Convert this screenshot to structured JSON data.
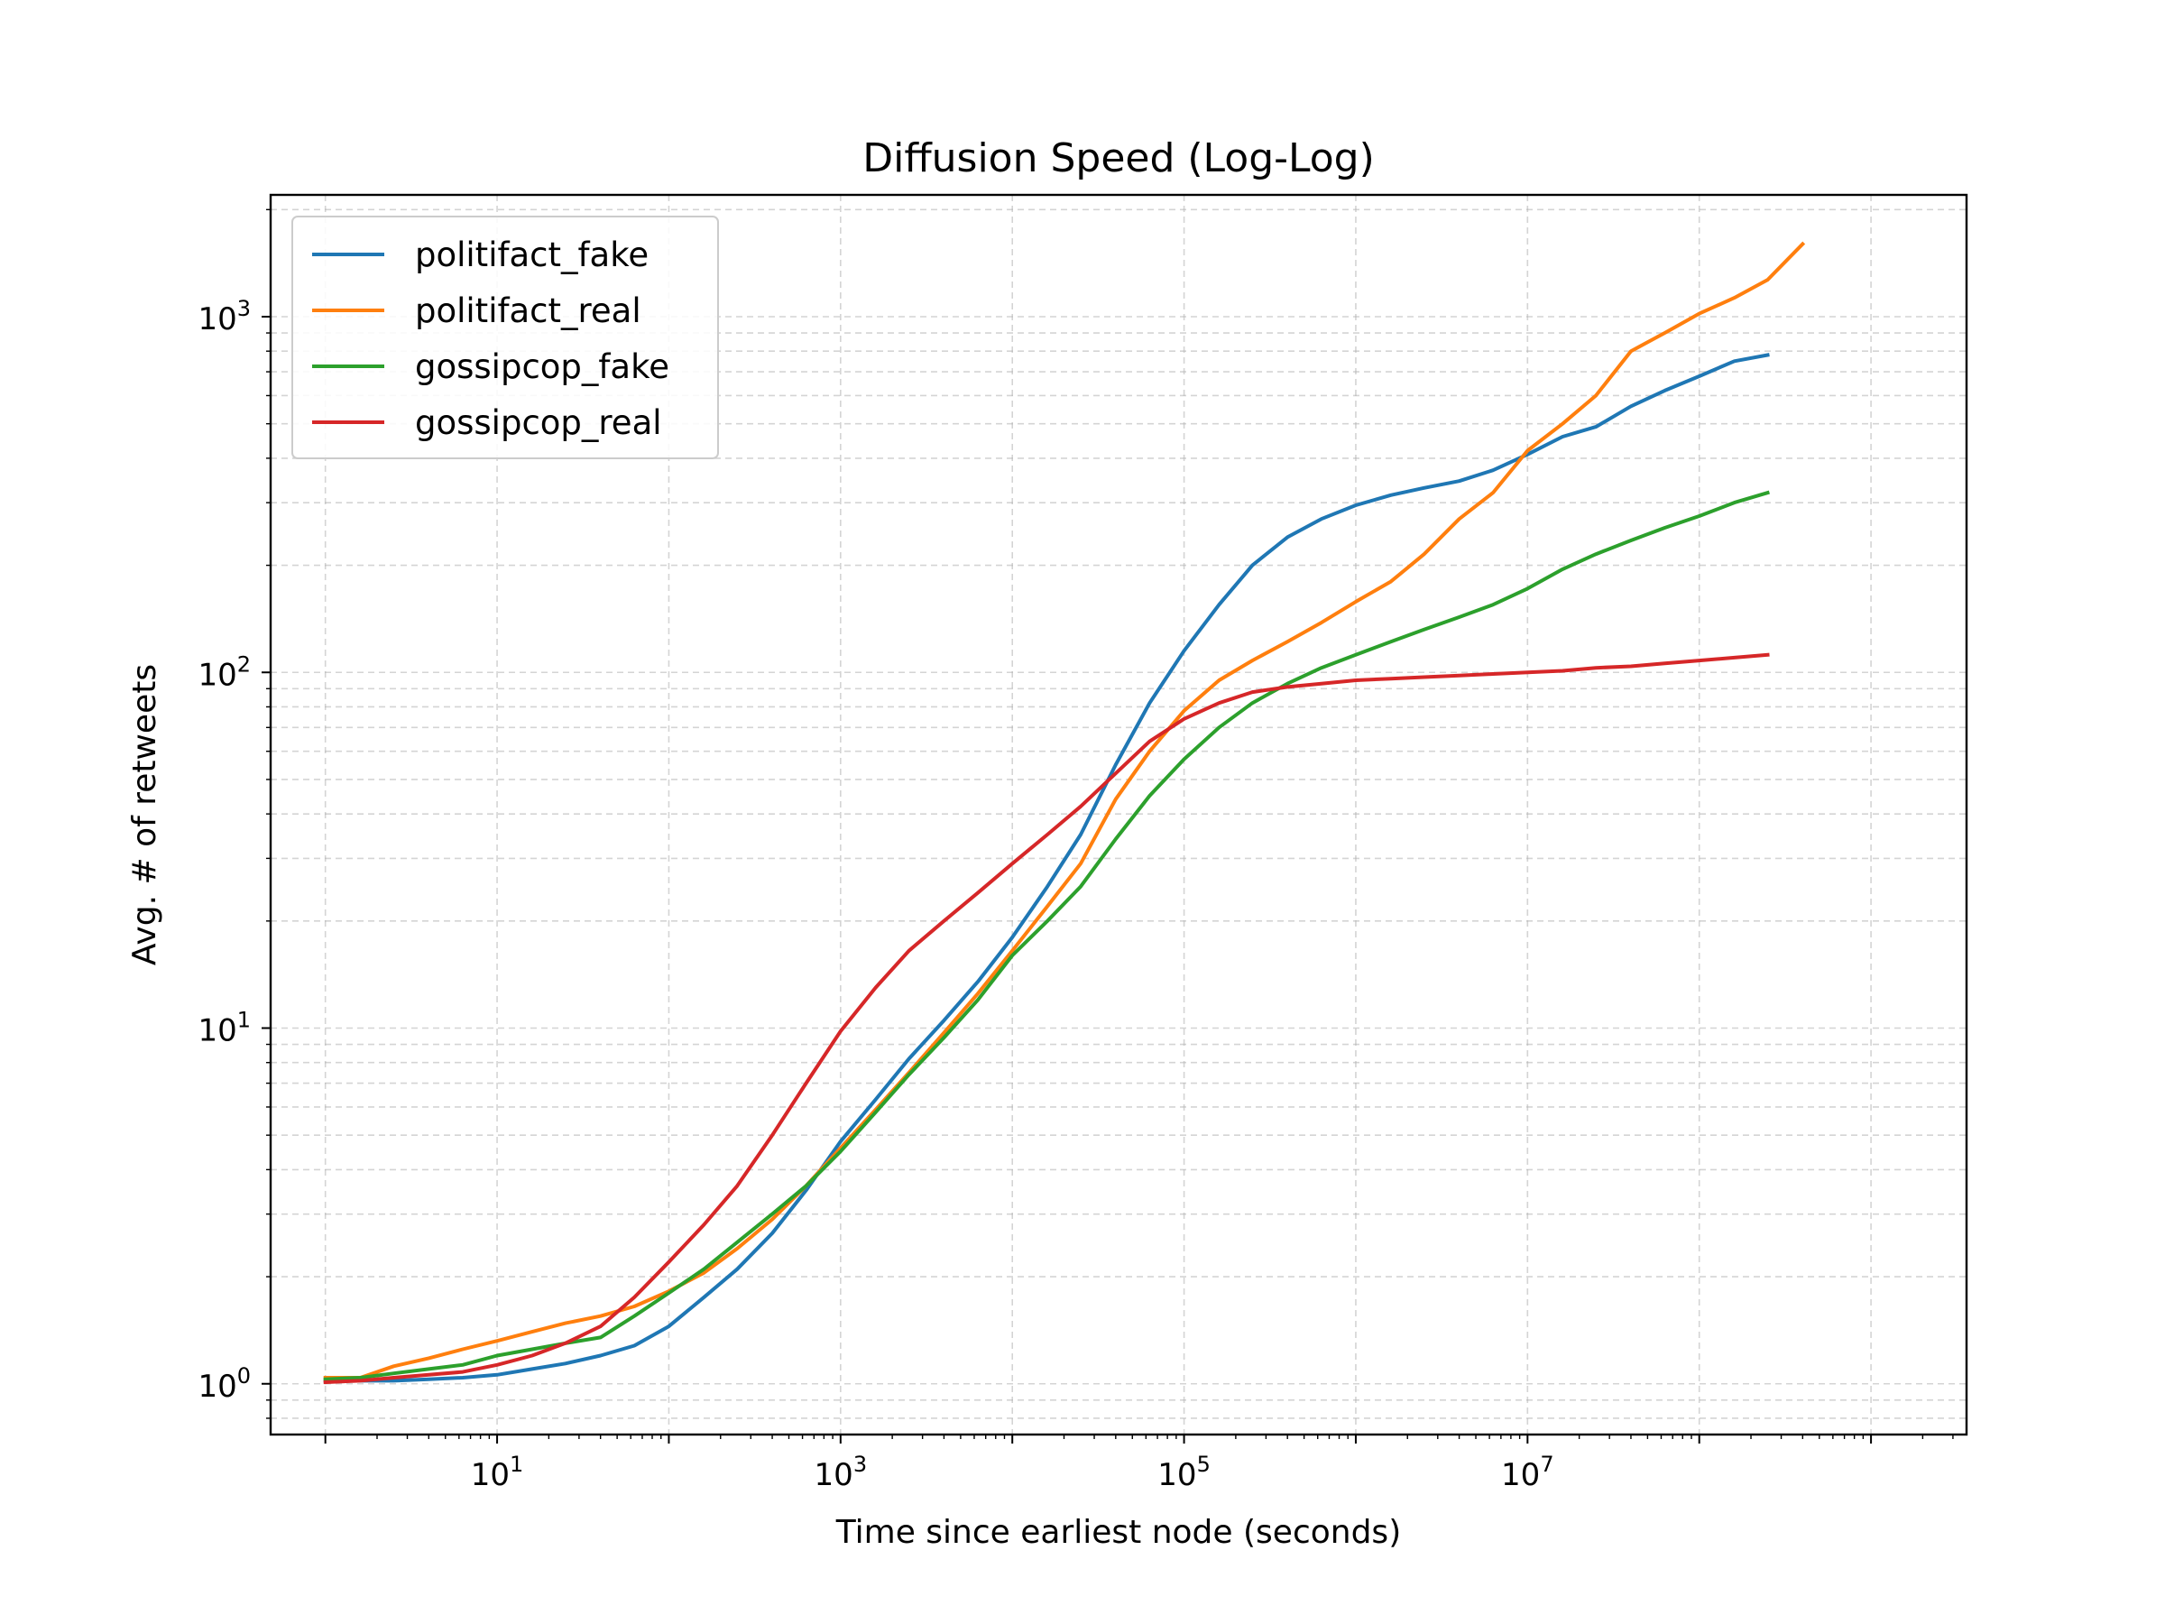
{
  "chart_data": {
    "type": "line",
    "title": "Diffusion Speed (Log-Log)",
    "xlabel": "Time since earliest node (seconds)",
    "ylabel": "Avg. # of retweets",
    "xscale": "log",
    "yscale": "log",
    "xlim": [
      0.48,
      3600000000
    ],
    "ylim": [
      0.72,
      2200
    ],
    "grid": true,
    "legend_position": "top-left",
    "x_ticks": [
      {
        "value": 10,
        "base": "10",
        "exp": "1"
      },
      {
        "value": 1000,
        "base": "10",
        "exp": "3"
      },
      {
        "value": 100000,
        "base": "10",
        "exp": "5"
      },
      {
        "value": 10000000,
        "base": "10",
        "exp": "7"
      }
    ],
    "y_ticks": [
      {
        "value": 1,
        "base": "10",
        "exp": "0"
      },
      {
        "value": 10,
        "base": "10",
        "exp": "1"
      },
      {
        "value": 100,
        "base": "10",
        "exp": "2"
      },
      {
        "value": 1000,
        "base": "10",
        "exp": "3"
      }
    ],
    "series": [
      {
        "name": "politifact_fake",
        "color": "#1f77b4",
        "x": [
          1,
          1.6,
          2.5,
          4,
          6.3,
          10,
          16,
          25,
          40,
          63,
          100,
          160,
          250,
          400,
          630,
          1000,
          1600,
          2500,
          4000,
          6300,
          10000,
          16000,
          25000,
          40000,
          63000,
          100000,
          160000,
          250000,
          400000,
          630000,
          1000000,
          1600000,
          2500000,
          4000000,
          6300000,
          10000000,
          16000000,
          25000000,
          40000000,
          63000000,
          100000000,
          160000000,
          250000000
        ],
        "y": [
          1.02,
          1.02,
          1.02,
          1.03,
          1.04,
          1.06,
          1.1,
          1.14,
          1.2,
          1.28,
          1.45,
          1.75,
          2.1,
          2.65,
          3.5,
          4.8,
          6.3,
          8.2,
          10.5,
          13.5,
          18,
          25,
          35,
          55,
          82,
          115,
          155,
          200,
          240,
          270,
          295,
          315,
          330,
          345,
          370,
          410,
          460,
          490,
          560,
          620,
          680,
          750,
          780
        ]
      },
      {
        "name": "politifact_real",
        "color": "#ff7f0e",
        "x": [
          1,
          1.6,
          2.5,
          4,
          6.3,
          10,
          16,
          25,
          40,
          63,
          100,
          160,
          250,
          400,
          630,
          1000,
          1600,
          2500,
          4000,
          6300,
          10000,
          16000,
          25000,
          40000,
          63000,
          100000,
          160000,
          250000,
          400000,
          630000,
          1000000,
          1600000,
          2500000,
          4000000,
          6300000,
          10000000,
          16000000,
          25000000,
          40000000,
          63000000,
          100000000,
          160000000,
          250000000,
          400000000
        ],
        "y": [
          1.04,
          1.04,
          1.12,
          1.18,
          1.25,
          1.32,
          1.4,
          1.48,
          1.55,
          1.65,
          1.82,
          2.05,
          2.4,
          2.9,
          3.6,
          4.6,
          5.9,
          7.5,
          9.7,
          12.5,
          16.5,
          22,
          29,
          44,
          60,
          78,
          95,
          108,
          122,
          138,
          158,
          180,
          215,
          270,
          320,
          420,
          500,
          600,
          800,
          900,
          1020,
          1130,
          1270,
          1600
        ]
      },
      {
        "name": "gossipcop_fake",
        "color": "#2ca02c",
        "x": [
          1,
          1.6,
          2.5,
          4,
          6.3,
          10,
          16,
          25,
          40,
          63,
          100,
          160,
          250,
          400,
          630,
          1000,
          1600,
          2500,
          4000,
          6300,
          10000,
          16000,
          25000,
          40000,
          63000,
          100000,
          160000,
          250000,
          400000,
          630000,
          1000000,
          1600000,
          2500000,
          4000000,
          6300000,
          10000000,
          16000000,
          25000000,
          40000000,
          63000000,
          100000000,
          160000000,
          250000000
        ],
        "y": [
          1.03,
          1.04,
          1.07,
          1.1,
          1.13,
          1.2,
          1.25,
          1.3,
          1.35,
          1.55,
          1.8,
          2.1,
          2.5,
          3.0,
          3.6,
          4.5,
          5.8,
          7.4,
          9.4,
          12,
          16,
          20,
          25,
          34,
          45,
          57,
          70,
          82,
          93,
          103,
          112,
          122,
          132,
          143,
          155,
          172,
          195,
          215,
          235,
          255,
          275,
          300,
          320
        ]
      },
      {
        "name": "gossipcop_real",
        "color": "#d62728",
        "x": [
          1,
          1.6,
          2.5,
          4,
          6.3,
          10,
          16,
          25,
          40,
          63,
          100,
          160,
          250,
          400,
          630,
          1000,
          1600,
          2500,
          4000,
          6300,
          10000,
          16000,
          25000,
          40000,
          63000,
          100000,
          160000,
          250000,
          400000,
          630000,
          1000000,
          1600000,
          2500000,
          4000000,
          6300000,
          10000000,
          16000000,
          25000000,
          40000000,
          63000000,
          100000000,
          160000000,
          250000000
        ],
        "y": [
          1.01,
          1.02,
          1.04,
          1.06,
          1.08,
          1.13,
          1.2,
          1.3,
          1.45,
          1.75,
          2.2,
          2.8,
          3.6,
          5.0,
          7.0,
          9.8,
          13,
          16.5,
          20,
          24,
          29,
          35,
          42,
          52,
          64,
          74,
          82,
          88,
          91,
          93,
          95,
          96,
          97,
          98,
          99,
          100,
          101,
          103,
          104,
          106,
          108,
          110,
          112
        ]
      }
    ]
  }
}
